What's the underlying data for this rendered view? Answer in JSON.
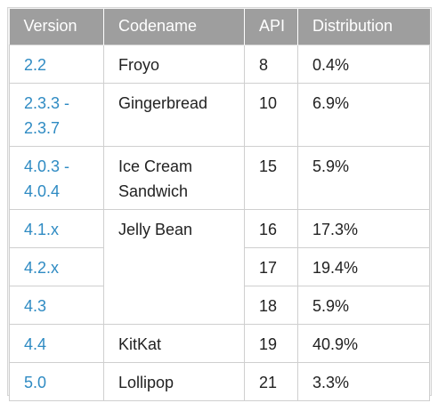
{
  "table": {
    "headers": [
      "Version",
      "Codename",
      "API",
      "Distribution"
    ],
    "rows": [
      {
        "version": "2.2",
        "codename": "Froyo",
        "api": "8",
        "distribution": "0.4%"
      },
      {
        "version": "2.3.3 - 2.3.7",
        "codename": "Gingerbread",
        "api": "10",
        "distribution": "6.9%"
      },
      {
        "version": "4.0.3 - 4.0.4",
        "codename": "Ice Cream Sandwich",
        "api": "15",
        "distribution": "5.9%"
      },
      {
        "version": "4.1.x",
        "codename": "Jelly Bean",
        "api": "16",
        "distribution": "17.3%"
      },
      {
        "version": "4.2.x",
        "codename": "",
        "api": "17",
        "distribution": "19.4%"
      },
      {
        "version": "4.3",
        "codename": "",
        "api": "18",
        "distribution": "5.9%"
      },
      {
        "version": "4.4",
        "codename": "KitKat",
        "api": "19",
        "distribution": "40.9%"
      },
      {
        "version": "5.0",
        "codename": "Lollipop",
        "api": "21",
        "distribution": "3.3%"
      }
    ]
  },
  "colors": {
    "header_bg": "#9e9e9e",
    "version_link": "#2f8bc3",
    "border": "#cfcfcf"
  }
}
